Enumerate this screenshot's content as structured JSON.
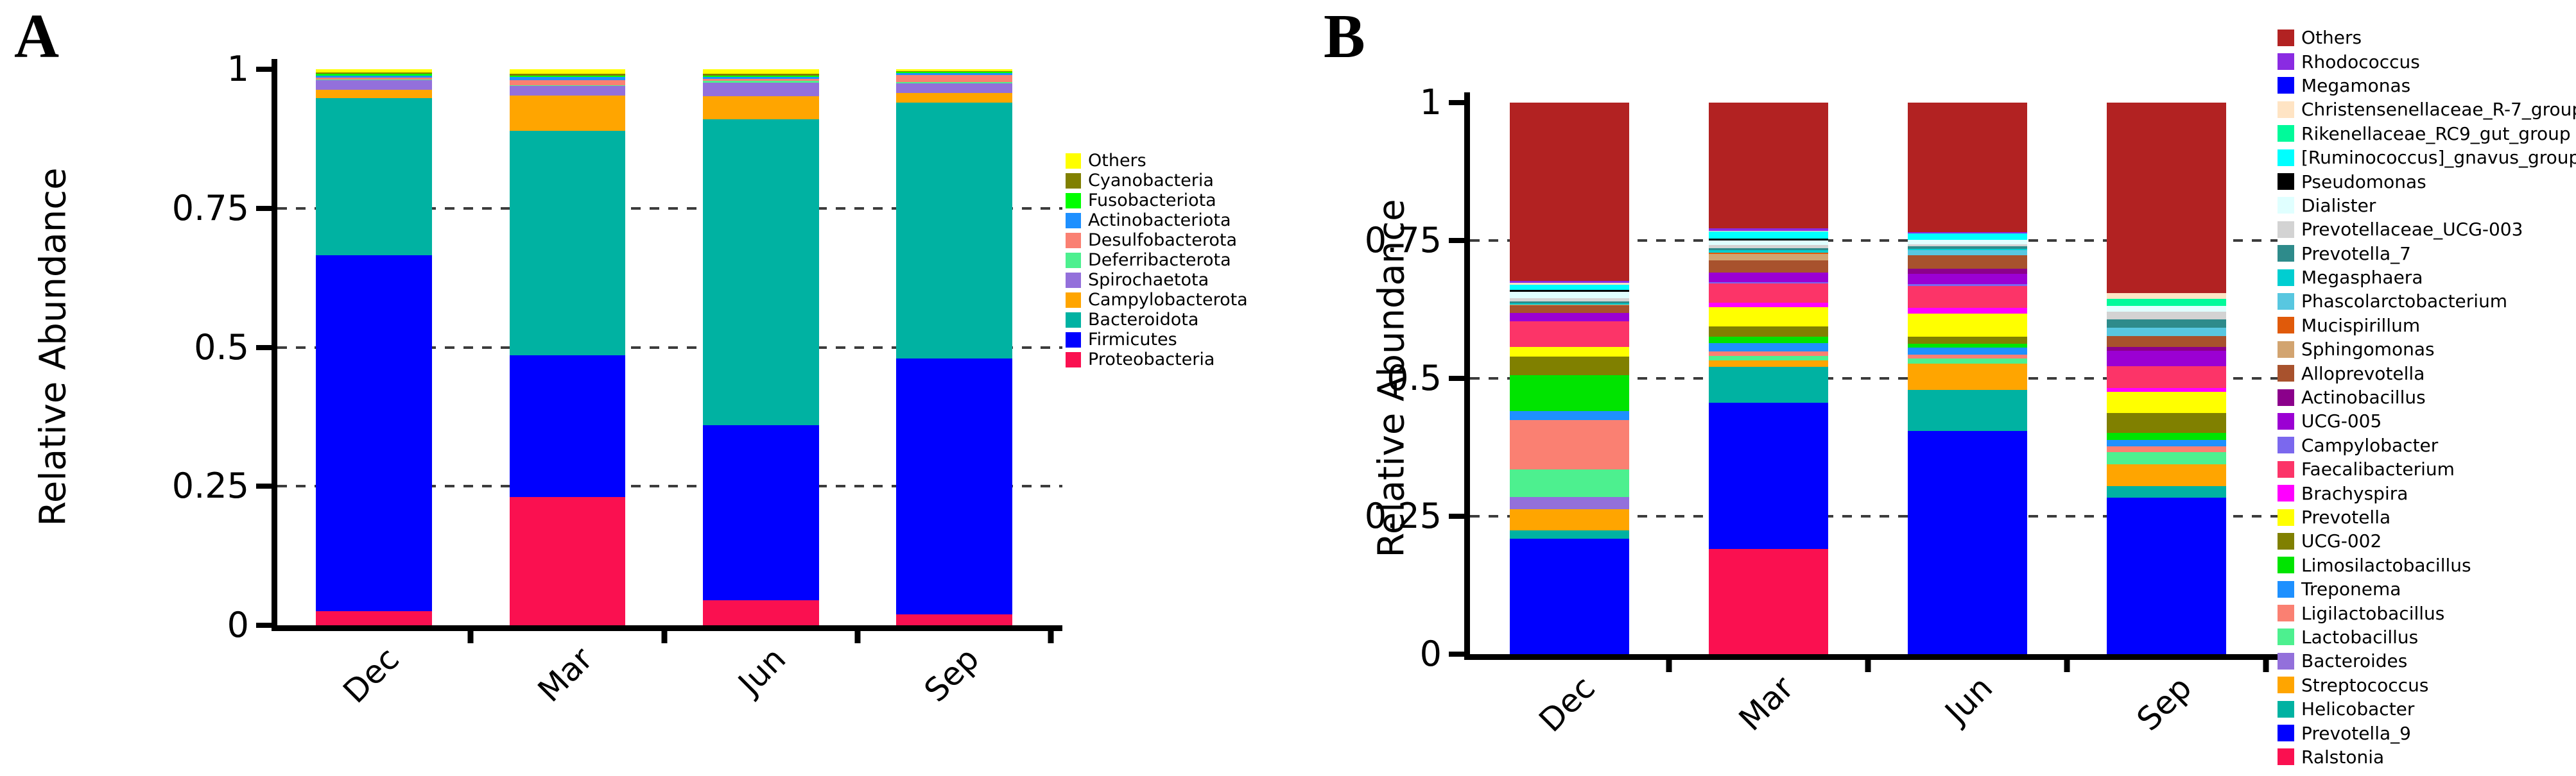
{
  "panels": [
    {
      "label": "A"
    },
    {
      "label": "B"
    }
  ],
  "chart_data": [
    {
      "type": "bar",
      "stacked": true,
      "panel": "A",
      "title": "",
      "xlabel": "",
      "ylabel": "Relative Abundance",
      "ylim": [
        0,
        1
      ],
      "yticks": [
        {
          "label": "1",
          "value": 1
        },
        {
          "label": "0.75",
          "value": 0.75
        },
        {
          "label": "0.5",
          "value": 0.5
        },
        {
          "label": "0.25",
          "value": 0.25
        },
        {
          "label": "0",
          "value": 0
        }
      ],
      "gridlines": [
        0.75,
        0.5,
        0.25
      ],
      "grid": "dashed-horizontal",
      "legend_position": "right",
      "categories": [
        "Dec",
        "Mar",
        "Jun",
        "Sep"
      ],
      "series": [
        {
          "name": "Others",
          "color": "#FFFF00",
          "values": [
            0.006,
            0.008,
            0.008,
            0.004
          ]
        },
        {
          "name": "Cyanobacteria",
          "color": "#808000",
          "values": [
            0.002,
            0.004,
            0.004,
            0.001
          ]
        },
        {
          "name": "Fusobacteriota",
          "color": "#00FF00",
          "values": [
            0.003,
            0.002,
            0.002,
            0.002
          ]
        },
        {
          "name": "Actinobacteriota",
          "color": "#1E90FF",
          "values": [
            0.004,
            0.006,
            0.003,
            0.004
          ]
        },
        {
          "name": "Desulfobacterota",
          "color": "#FA8072",
          "values": [
            0.003,
            0.009,
            0.004,
            0.012
          ]
        },
        {
          "name": "Deferribacterota",
          "color": "#4DF08F",
          "values": [
            0.002,
            0.001,
            0.003,
            0.002
          ]
        },
        {
          "name": "Spirochaetota",
          "color": "#9370DB",
          "values": [
            0.017,
            0.017,
            0.024,
            0.018
          ]
        },
        {
          "name": "Campylobacterota",
          "color": "#FFA500",
          "values": [
            0.015,
            0.064,
            0.042,
            0.017
          ]
        },
        {
          "name": "Bacteroidota",
          "color": "#00B2A2",
          "values": [
            0.283,
            0.403,
            0.55,
            0.46
          ]
        },
        {
          "name": "Firmicutes",
          "color": "#0000FF",
          "values": [
            0.64,
            0.256,
            0.315,
            0.46
          ]
        },
        {
          "name": "Proteobacteria",
          "color": "#FA1050",
          "values": [
            0.025,
            0.23,
            0.045,
            0.02
          ]
        }
      ]
    },
    {
      "type": "bar",
      "stacked": true,
      "panel": "B",
      "title": "",
      "xlabel": "",
      "ylabel": "Relative Abundance",
      "ylim": [
        0,
        1
      ],
      "yticks": [
        {
          "label": "1",
          "value": 1
        },
        {
          "label": "0.75",
          "value": 0.75
        },
        {
          "label": "0.5",
          "value": 0.5
        },
        {
          "label": "0.25",
          "value": 0.25
        },
        {
          "label": "0",
          "value": 0
        }
      ],
      "gridlines": [
        0.75,
        0.5,
        0.25
      ],
      "grid": "dashed-horizontal",
      "legend_position": "right",
      "categories": [
        "Dec",
        "Mar",
        "Jun",
        "Sep"
      ],
      "series": [
        {
          "name": "Others",
          "color": "#B22222",
          "values": [
            0.323,
            0.228,
            0.235,
            0.345
          ]
        },
        {
          "name": "Rhodococcus",
          "color": "#8A2BE2",
          "values": [
            0.004,
            0.004,
            0.002,
            0
          ]
        },
        {
          "name": "Megamonas",
          "color": "#0000FF",
          "values": [
            0,
            0,
            0,
            0
          ]
        },
        {
          "name": "Christensenellaceae_R-7_group",
          "color": "#FFE4C4",
          "values": [
            0.003,
            0.002,
            0,
            0.011
          ]
        },
        {
          "name": "Rikenellaceae_RC9_gut_group",
          "color": "#00FA9A",
          "values": [
            0,
            0,
            0,
            0.013
          ]
        },
        {
          "name": "[Ruminococcus]_gnavus_group",
          "color": "#00FFFF",
          "values": [
            0.01,
            0.012,
            0.012,
            0
          ]
        },
        {
          "name": "Pseudomonas",
          "color": "#000000",
          "values": [
            0.003,
            0.004,
            0,
            0
          ]
        },
        {
          "name": "Dialister",
          "color": "#E0FFFF",
          "values": [
            0.012,
            0.008,
            0.008,
            0.01
          ]
        },
        {
          "name": "Prevotellaceae_UCG-003",
          "color": "#D3D3D3",
          "values": [
            0.005,
            0.006,
            0.004,
            0.014
          ]
        },
        {
          "name": "Prevotella_7",
          "color": "#2E8B8B",
          "values": [
            0.004,
            0.004,
            0.004,
            0.015
          ]
        },
        {
          "name": "Megasphaera",
          "color": "#00CED1",
          "values": [
            0.002,
            0.004,
            0.002,
            0
          ]
        },
        {
          "name": "Phascolarctobacterium",
          "color": "#58C7E0",
          "values": [
            0,
            0,
            0.01,
            0.015
          ]
        },
        {
          "name": "Mucispirillum",
          "color": "#E05A0A",
          "values": [
            0,
            0.002,
            0,
            0
          ]
        },
        {
          "name": "Sphingomonas",
          "color": "#D2A470",
          "values": [
            0.002,
            0.012,
            0,
            0
          ]
        },
        {
          "name": "Alloprevotella",
          "color": "#A8522D",
          "values": [
            0.013,
            0.022,
            0.024,
            0.02
          ]
        },
        {
          "name": "Actinobacillus",
          "color": "#8B008B",
          "values": [
            0,
            0,
            0.009,
            0.007
          ]
        },
        {
          "name": "UCG-005",
          "color": "#9B00D3",
          "values": [
            0.015,
            0.018,
            0.019,
            0.028
          ]
        },
        {
          "name": "Campylobacter",
          "color": "#7B68EE",
          "values": [
            0,
            0.002,
            0.004,
            0
          ]
        },
        {
          "name": "Faecalibacterium",
          "color": "#FC3468",
          "values": [
            0.047,
            0.035,
            0.039,
            0.039
          ]
        },
        {
          "name": "Brachyspira",
          "color": "#FF00FF",
          "values": [
            0,
            0.008,
            0.011,
            0.007
          ]
        },
        {
          "name": "Prevotella",
          "color": "#FFFF00",
          "values": [
            0.017,
            0.035,
            0.041,
            0.039
          ]
        },
        {
          "name": "UCG-002",
          "color": "#808000",
          "values": [
            0.034,
            0.018,
            0.013,
            0.036
          ]
        },
        {
          "name": "Limosilactobacillus",
          "color": "#00E400",
          "values": [
            0.065,
            0.012,
            0.007,
            0.013
          ]
        },
        {
          "name": "Treponema",
          "color": "#1E90FF",
          "values": [
            0.017,
            0.015,
            0.013,
            0.011
          ]
        },
        {
          "name": "Ligilactobacillus",
          "color": "#FA8072",
          "values": [
            0.089,
            0.008,
            0.007,
            0.011
          ]
        },
        {
          "name": "Lactobacillus",
          "color": "#4DF08F",
          "values": [
            0.05,
            0.008,
            0.009,
            0.022
          ]
        },
        {
          "name": "Bacteroides",
          "color": "#9370DB",
          "values": [
            0.022,
            0,
            0,
            0
          ]
        },
        {
          "name": "Streptococcus",
          "color": "#FFA500",
          "values": [
            0.039,
            0.012,
            0.048,
            0.04
          ]
        },
        {
          "name": "Helicobacter",
          "color": "#00B2A2",
          "values": [
            0.015,
            0.065,
            0.075,
            0.021
          ]
        },
        {
          "name": "Prevotella_9",
          "color": "#0000FF",
          "values": [
            0.209,
            0.266,
            0.404,
            0.283
          ]
        },
        {
          "name": "Ralstonia",
          "color": "#FA1050",
          "values": [
            0,
            0.19,
            0,
            0
          ]
        }
      ]
    }
  ]
}
